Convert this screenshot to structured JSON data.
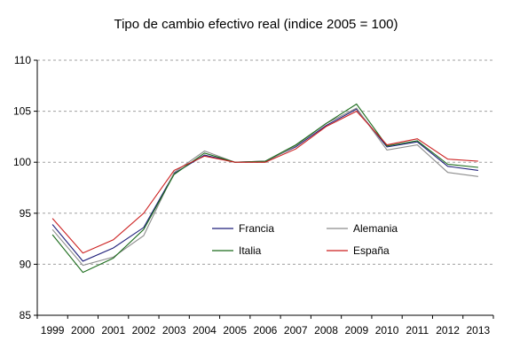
{
  "chart_data": {
    "type": "line",
    "title": "Tipo de cambio efectivo real (indice 2005 = 100)",
    "xlabel": "",
    "ylabel": "",
    "categories": [
      "1999",
      "2000",
      "2001",
      "2002",
      "2003",
      "2004",
      "2005",
      "2006",
      "2007",
      "2008",
      "2009",
      "2010",
      "2011",
      "2012",
      "2013"
    ],
    "ylim": [
      85,
      110
    ],
    "yticks": [
      85,
      90,
      95,
      100,
      105,
      110
    ],
    "grid": "horizontal-dashed",
    "legend": "inside-center",
    "series": [
      {
        "name": "Francia",
        "color": "#1f1f7a",
        "values": [
          93.9,
          90.3,
          91.6,
          93.6,
          98.9,
          100.7,
          100.0,
          100.1,
          101.5,
          103.6,
          105.2,
          101.5,
          102.0,
          99.6,
          99.2
        ]
      },
      {
        "name": "Alemania",
        "color": "#8c8c8c",
        "values": [
          93.4,
          89.9,
          90.7,
          92.8,
          99.0,
          101.1,
          100.0,
          100.0,
          101.6,
          103.8,
          105.3,
          101.2,
          101.7,
          99.0,
          98.6
        ]
      },
      {
        "name": "Italia",
        "color": "#1a6b1a",
        "values": [
          92.9,
          89.2,
          90.6,
          93.4,
          98.8,
          100.9,
          100.0,
          100.1,
          101.7,
          103.8,
          105.7,
          101.6,
          102.1,
          99.8,
          99.5
        ]
      },
      {
        "name": "España",
        "color": "#cc1f1f",
        "values": [
          94.5,
          91.1,
          92.4,
          95.0,
          99.2,
          100.6,
          100.0,
          100.0,
          101.3,
          103.5,
          105.0,
          101.7,
          102.3,
          100.3,
          100.1
        ]
      }
    ]
  }
}
